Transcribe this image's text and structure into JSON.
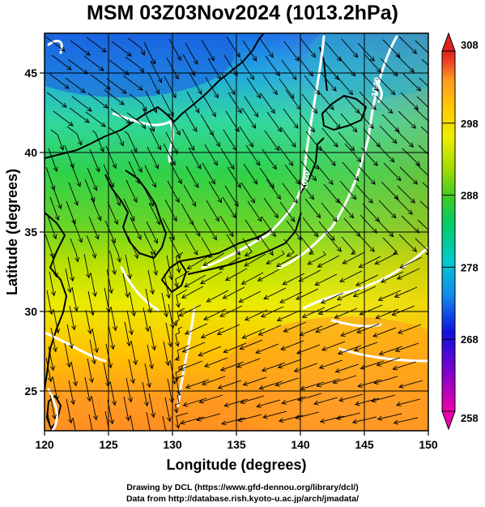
{
  "title": "MSM 03Z03Nov2024 (1013.2hPa)",
  "x_axis": {
    "label": "Longitude (degrees)",
    "range": [
      120,
      150
    ],
    "ticks": [
      "120",
      "125",
      "130",
      "135",
      "140",
      "145",
      "150"
    ]
  },
  "y_axis": {
    "label": "Latitude  (degrees)",
    "range": [
      22.5,
      47.5
    ],
    "ticks": [
      "25",
      "30",
      "35",
      "40",
      "45"
    ]
  },
  "colorbar": {
    "range": [
      258,
      308
    ],
    "ticks": [
      "308",
      "298",
      "288",
      "278",
      "268",
      "258"
    ],
    "colors": [
      "#ee00aa",
      "#8800cc",
      "#1111dd",
      "#1188ee",
      "#00cccc",
      "#00cc66",
      "#44cc22",
      "#aadd00",
      "#eeee00",
      "#ffcc00",
      "#ff9922",
      "#ee4422",
      "#dd2222"
    ]
  },
  "contour_labels": [
    "1020",
    "1020"
  ],
  "credits": {
    "line1": "Drawing by DCL (https://www.gfd-dennou.org/library/dcl/)",
    "line2": "Data from http://database.rish.kyoto-u.ac.jp/arch/jmadata/"
  }
}
